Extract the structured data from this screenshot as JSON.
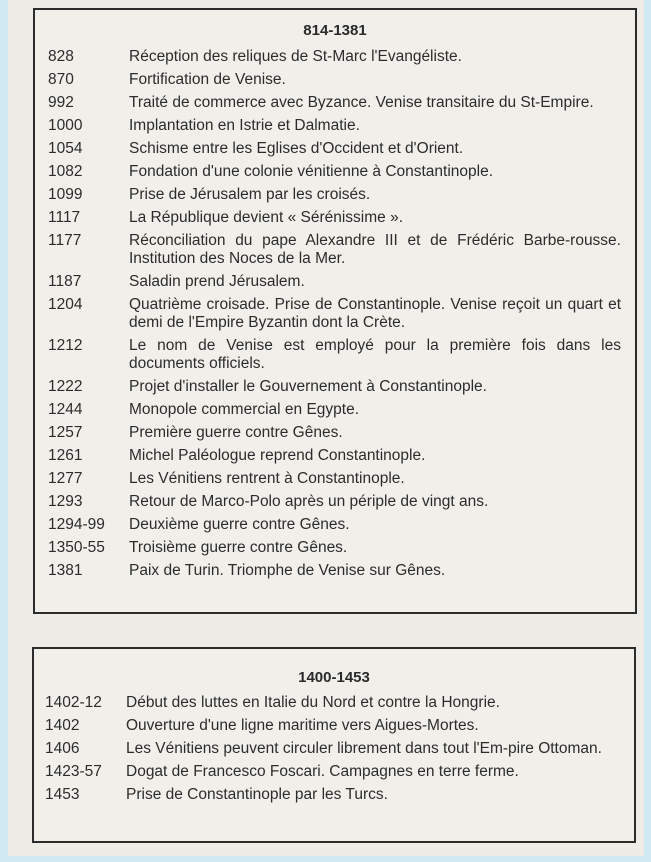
{
  "sections": [
    {
      "title": "814-1381",
      "entries": [
        {
          "date": "828",
          "text": "Réception des reliques de St-Marc l'Evangéliste."
        },
        {
          "date": "870",
          "text": "Fortification de Venise."
        },
        {
          "date": "992",
          "text": "Traité de commerce avec Byzance. Venise transitaire du St-Empire."
        },
        {
          "date": "1000",
          "text": "Implantation en Istrie et Dalmatie."
        },
        {
          "date": "1054",
          "text": "Schisme entre les Eglises d'Occident et d'Orient."
        },
        {
          "date": "1082",
          "text": "Fondation d'une colonie vénitienne à Constantinople."
        },
        {
          "date": "1099",
          "text": "Prise de Jérusalem par les croisés."
        },
        {
          "date": "1117",
          "text": "La République devient « Sérénissime »."
        },
        {
          "date": "1177",
          "text": "Réconciliation du pape Alexandre III et de Frédéric Barbe-rousse. Institution des Noces de la Mer."
        },
        {
          "date": "1187",
          "text": "Saladin prend Jérusalem."
        },
        {
          "date": "1204",
          "text": "Quatrième croisade. Prise de Constantinople. Venise reçoit un quart et demi de l'Empire Byzantin dont la Crète."
        },
        {
          "date": "1212",
          "text": "Le nom de Venise est employé pour la première fois dans les documents officiels."
        },
        {
          "date": "1222",
          "text": "Projet d'installer le Gouvernement à Constantinople."
        },
        {
          "date": "1244",
          "text": "Monopole commercial en Egypte."
        },
        {
          "date": "1257",
          "text": "Première guerre contre Gênes."
        },
        {
          "date": "1261",
          "text": "Michel Paléologue reprend Constantinople."
        },
        {
          "date": "1277",
          "text": "Les Vénitiens rentrent à Constantinople."
        },
        {
          "date": "1293",
          "text": "Retour de Marco-Polo après un périple de vingt ans."
        },
        {
          "date": "1294-99",
          "text": "Deuxième guerre contre Gênes."
        },
        {
          "date": "1350-55",
          "text": "Troisième guerre contre Gênes."
        },
        {
          "date": "1381",
          "text": "Paix de Turin. Triomphe de Venise sur Gênes."
        }
      ]
    },
    {
      "title": "1400-1453",
      "entries": [
        {
          "date": "1402-12",
          "text": "Début des luttes en Italie du Nord et contre la Hongrie."
        },
        {
          "date": "1402",
          "text": "Ouverture d'une ligne maritime vers Aigues-Mortes."
        },
        {
          "date": "1406",
          "text": "Les Vénitiens peuvent circuler librement dans tout l'Em-pire Ottoman."
        },
        {
          "date": "1423-57",
          "text": "Dogat de Francesco Foscari. Campagnes en terre ferme."
        },
        {
          "date": "1453",
          "text": "Prise de Constantinople par les Turcs."
        }
      ]
    }
  ]
}
